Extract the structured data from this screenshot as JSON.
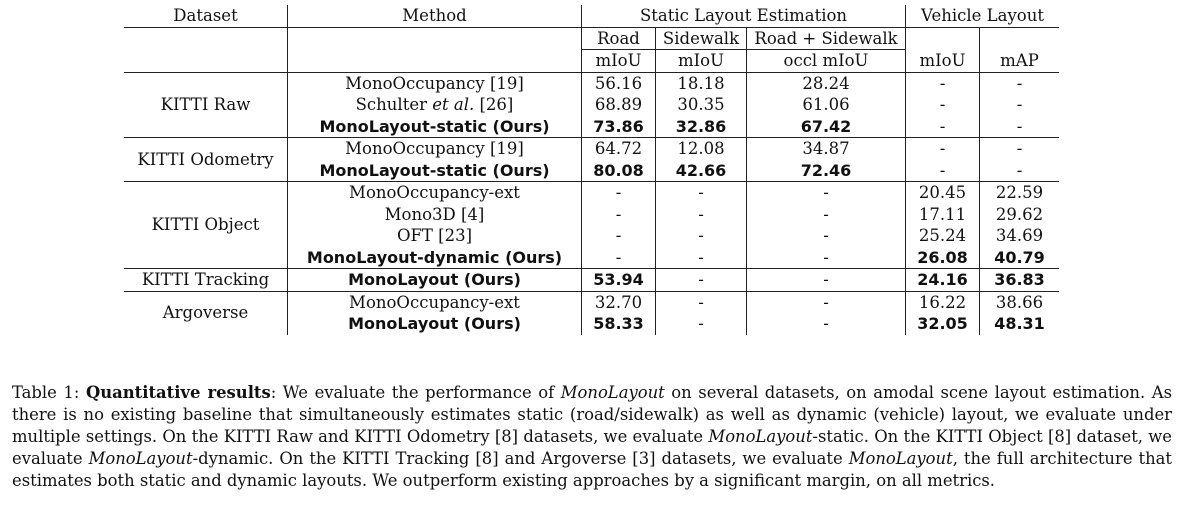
{
  "table": {
    "headers": {
      "dataset": "Dataset",
      "method": "Method",
      "static_group": "Static Layout Estimation",
      "vehicle_group": "Vehicle Layout",
      "road": "Road",
      "sidewalk": "Sidewalk",
      "road_sidewalk": "Road + Sidewalk",
      "road_metric": "mIoU",
      "sidewalk_metric": "mIoU",
      "rs_metric": "occl mIoU",
      "veh_miou": "mIoU",
      "veh_map": "mAP"
    },
    "groups": [
      {
        "dataset": "KITTI Raw",
        "rows": [
          {
            "method": "MonoOccupancy [19]",
            "bold": false,
            "road": "56.16",
            "sidewalk": "18.18",
            "rs": "28.24",
            "miou": "-",
            "map": "-"
          },
          {
            "method_pre": "Schulter ",
            "method_em": "et al.",
            "method_post": " [26]",
            "bold": false,
            "road": "68.89",
            "sidewalk": "30.35",
            "rs": "61.06",
            "miou": "-",
            "map": "-"
          },
          {
            "method": "MonoLayout-static (Ours)",
            "bold": true,
            "road": "73.86",
            "sidewalk": "32.86",
            "rs": "67.42",
            "miou": "-",
            "map": "-",
            "bold_cols": [
              "road",
              "sidewalk",
              "rs"
            ]
          }
        ]
      },
      {
        "dataset": "KITTI Odometry",
        "rows": [
          {
            "method": "MonoOccupancy [19]",
            "bold": false,
            "road": "64.72",
            "sidewalk": "12.08",
            "rs": "34.87",
            "miou": "-",
            "map": "-"
          },
          {
            "method": "MonoLayout-static (Ours)",
            "bold": true,
            "road": "80.08",
            "sidewalk": "42.66",
            "rs": "72.46",
            "miou": "-",
            "map": "-"
          }
        ]
      },
      {
        "dataset": "KITTI Object",
        "rows": [
          {
            "method": "MonoOccupancy-ext",
            "bold": false,
            "road": "-",
            "sidewalk": "-",
            "rs": "-",
            "miou": "20.45",
            "map": "22.59"
          },
          {
            "method": "Mono3D [4]",
            "bold": false,
            "road": "-",
            "sidewalk": "-",
            "rs": "-",
            "miou": "17.11",
            "map": "29.62"
          },
          {
            "method": "OFT [23]",
            "bold": false,
            "road": "-",
            "sidewalk": "-",
            "rs": "-",
            "miou": "25.24",
            "map": "34.69"
          },
          {
            "method": "MonoLayout-dynamic (Ours)",
            "bold": true,
            "road": "-",
            "sidewalk": "-",
            "rs": "-",
            "miou": "26.08",
            "map": "40.79"
          }
        ]
      },
      {
        "dataset": "KITTI Tracking",
        "rows": [
          {
            "method": "MonoLayout (Ours)",
            "bold": true,
            "road": "53.94",
            "sidewalk": "-",
            "rs": "-",
            "miou": "24.16",
            "map": "36.83"
          }
        ]
      },
      {
        "dataset": "Argoverse",
        "rows": [
          {
            "method": "MonoOccupancy-ext",
            "bold": false,
            "road": "32.70",
            "sidewalk": "-",
            "rs": "-",
            "miou": "16.22",
            "map": "38.66"
          },
          {
            "method": "MonoLayout (Ours)",
            "bold": true,
            "road": "58.33",
            "sidewalk": "-",
            "rs": "-",
            "miou": "32.05",
            "map": "48.31"
          }
        ]
      }
    ]
  },
  "caption": {
    "label": "Table 1:",
    "title": "Quantitative results",
    "s1": ": We evaluate the performance of ",
    "e1": "MonoLayout",
    "s2": " on several datasets, on amodal scene layout estimation. As there is no existing baseline that simultaneously estimates static (road/sidewalk) as well as dynamic (vehicle) layout, we evaluate under multiple settings. On the KITTI Raw and KITTI Odometry [8] datasets, we evaluate ",
    "e2": "MonoLayout",
    "s3": "-static. On the KITTI Object [8] dataset, we evaluate ",
    "e3": "MonoLayout",
    "s4": "-dynamic. On the KITTI Tracking [8] and Argoverse [3] datasets, we evaluate ",
    "e4": "MonoLayout",
    "s5": ", the full architecture that estimates both static and dynamic layouts. We outperform existing approaches by a significant margin, on all metrics."
  }
}
